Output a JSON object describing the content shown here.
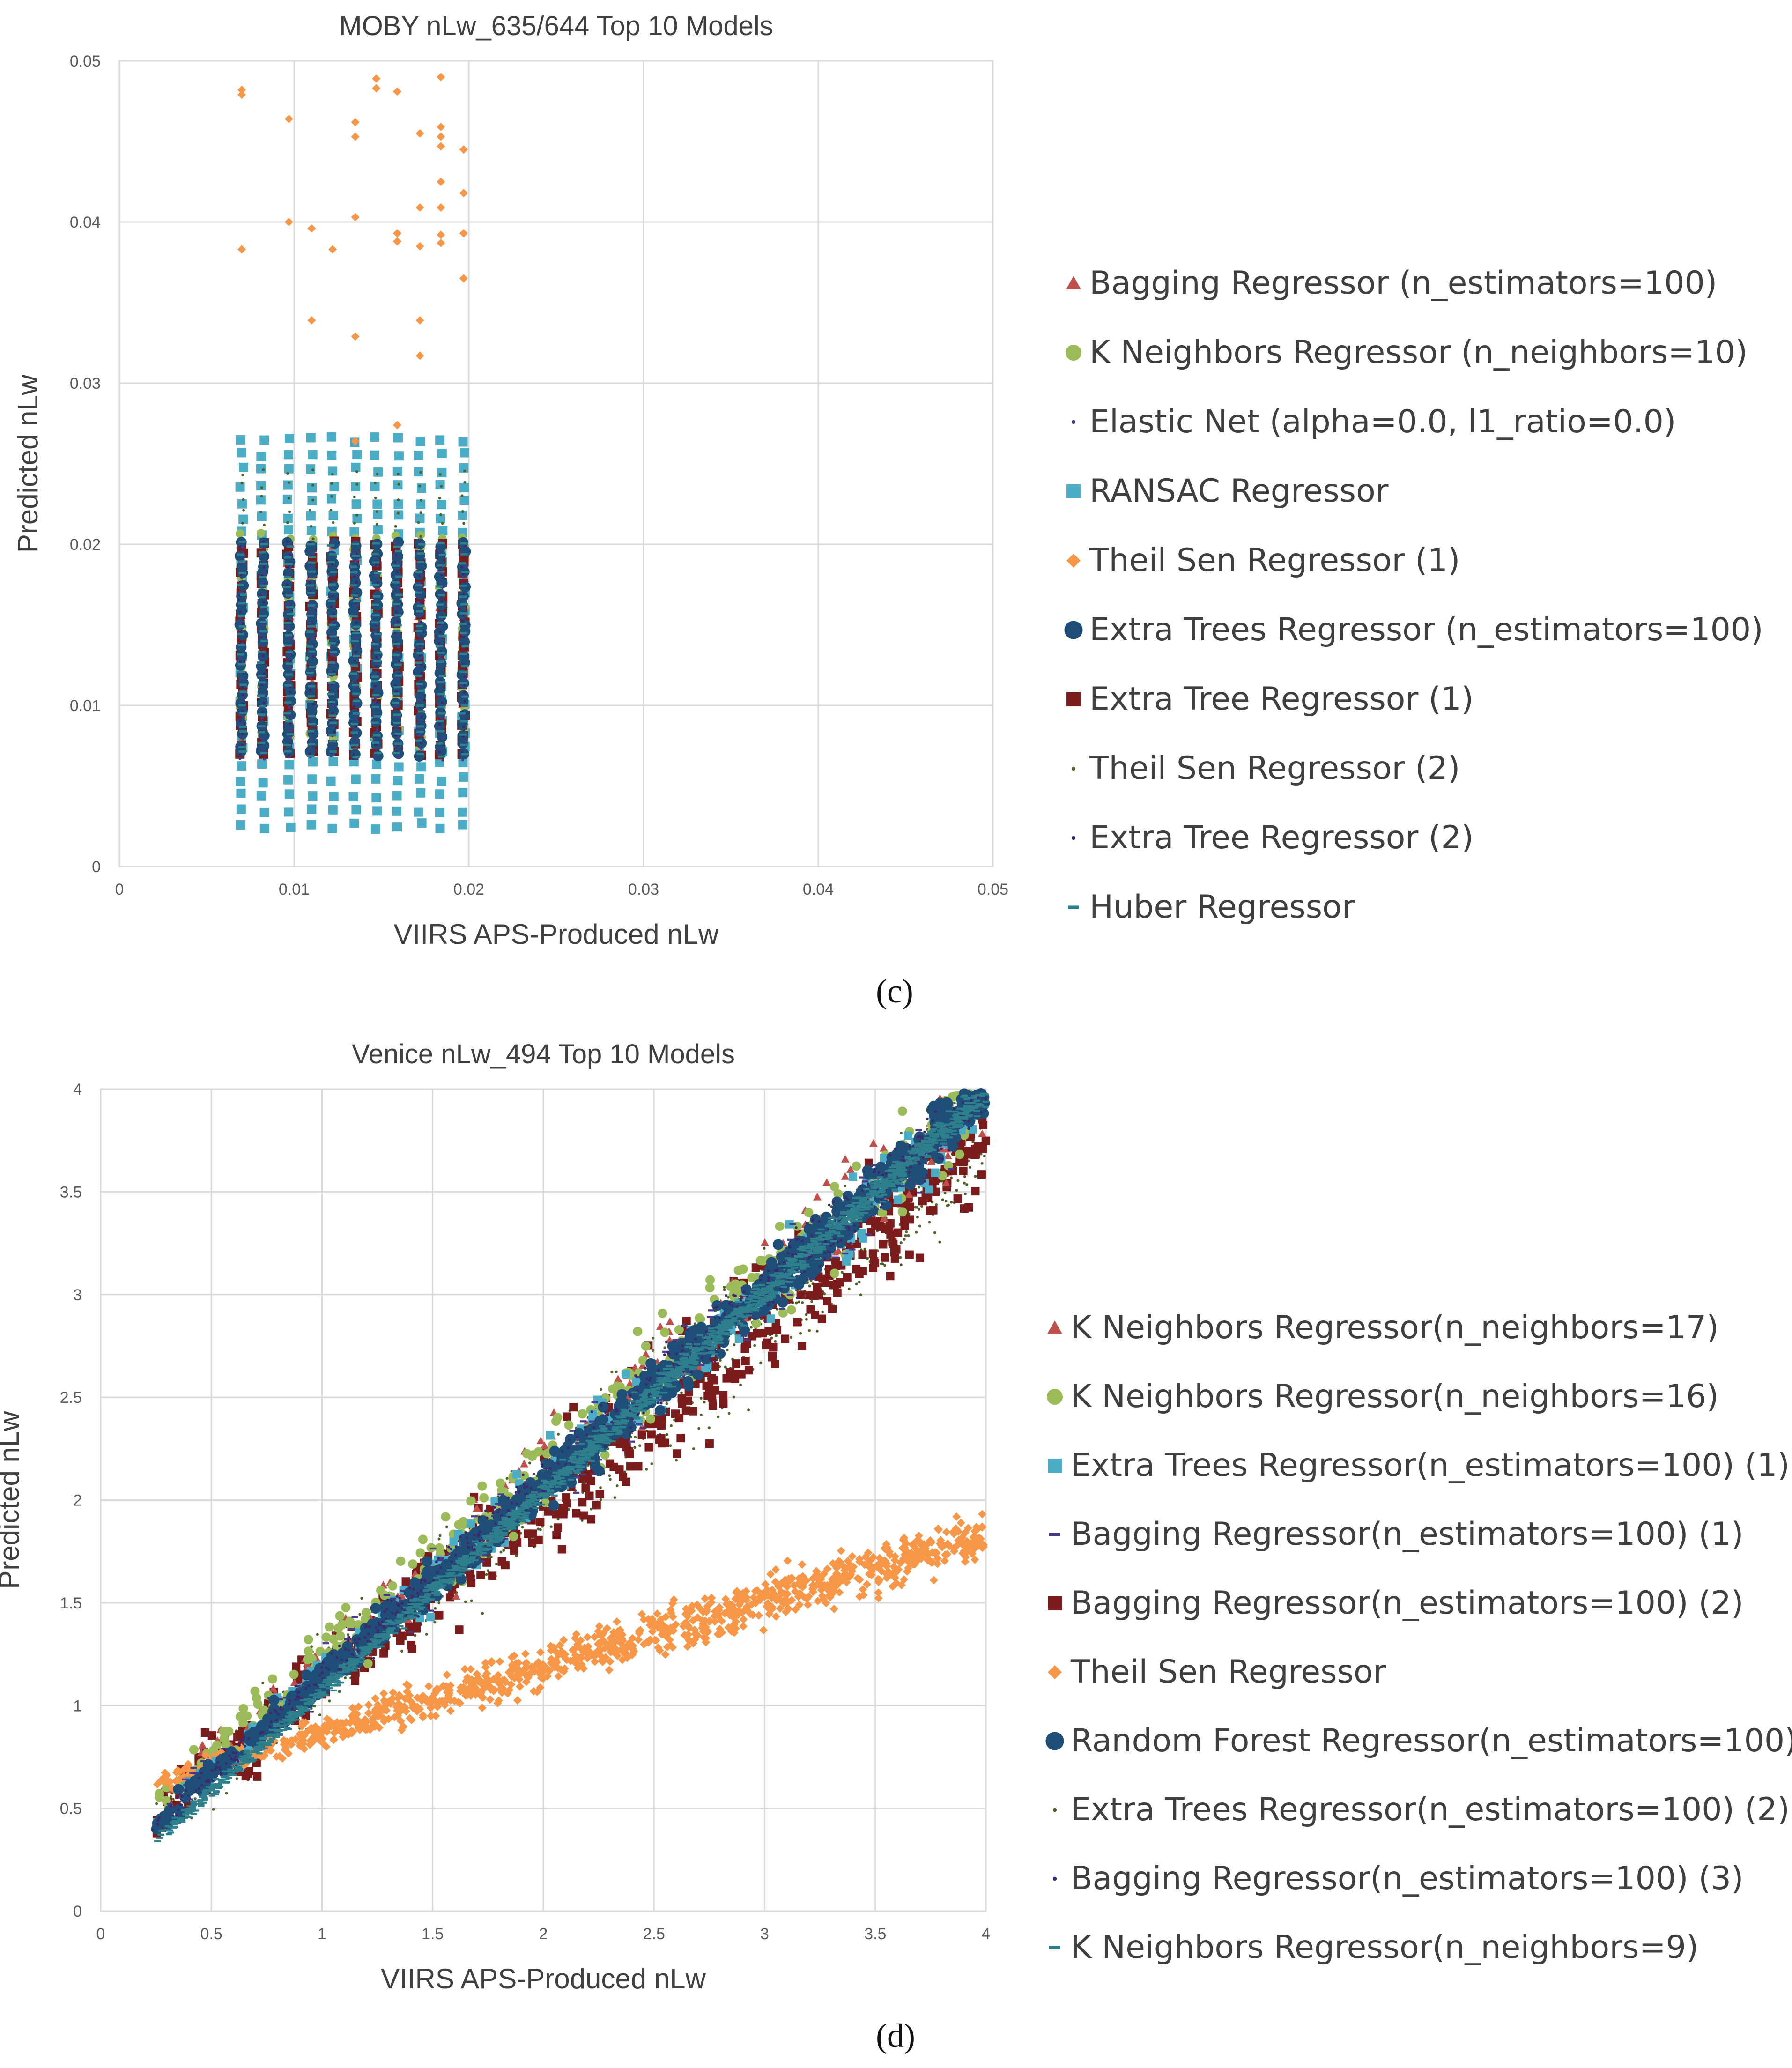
{
  "chart_data": [
    {
      "id": "c",
      "type": "scatter",
      "title": "MOBY nLw_635/644 Top 10 Models",
      "xlabel": "VIIRS APS-Produced nLw",
      "ylabel": "Predicted nLw",
      "xlim": [
        0,
        0.05
      ],
      "ylim": [
        0,
        0.05
      ],
      "xticks": [
        "0",
        "0.01",
        "0.02",
        "0.03",
        "0.04",
        "0.05"
      ],
      "yticks": [
        "0",
        "0.01",
        "0.02",
        "0.03",
        "0.04",
        "0.05"
      ],
      "grid": true,
      "legend_position": "right",
      "panel_label": "(c)",
      "x_values": [
        0.007,
        0.0082,
        0.0097,
        0.011,
        0.0122,
        0.0135,
        0.0147,
        0.0159,
        0.0172,
        0.0184,
        0.0197
      ],
      "series": [
        {
          "name": "Bagging Regressor (n_estimators=100)",
          "marker": "triangle",
          "color": "#c0504d",
          "band": [
            0.0072,
            0.0198
          ]
        },
        {
          "name": "K Neighbors Regressor (n_neighbors=10)",
          "marker": "circle",
          "color": "#9bbb59",
          "band": [
            0.0075,
            0.0205
          ]
        },
        {
          "name": "Elastic Net (alpha=0.0, l1_ratio=0.0)",
          "marker": "dot",
          "color": "#4b3a8c",
          "band": [
            0.0068,
            0.02
          ]
        },
        {
          "name": "RANSAC Regressor",
          "marker": "square",
          "color": "#4bacc6",
          "band": [
            0.0025,
            0.0265
          ]
        },
        {
          "name": "Theil Sen Regressor (1)",
          "marker": "diamond",
          "color": "#f79646",
          "outliers": [
            [
              0.007,
              0.0482
            ],
            [
              0.007,
              0.0479
            ],
            [
              0.007,
              0.0383
            ],
            [
              0.0097,
              0.0464
            ],
            [
              0.0097,
              0.04
            ],
            [
              0.011,
              0.0396
            ],
            [
              0.011,
              0.0339
            ],
            [
              0.0122,
              0.0383
            ],
            [
              0.0135,
              0.0462
            ],
            [
              0.0135,
              0.0453
            ],
            [
              0.0135,
              0.0403
            ],
            [
              0.0135,
              0.0329
            ],
            [
              0.0147,
              0.0489
            ],
            [
              0.0147,
              0.0483
            ],
            [
              0.0159,
              0.0481
            ],
            [
              0.0159,
              0.0393
            ],
            [
              0.0159,
              0.0388
            ],
            [
              0.0172,
              0.0455
            ],
            [
              0.0172,
              0.0409
            ],
            [
              0.0172,
              0.0385
            ],
            [
              0.0172,
              0.0339
            ],
            [
              0.0172,
              0.0317
            ],
            [
              0.0184,
              0.049
            ],
            [
              0.0184,
              0.0459
            ],
            [
              0.0184,
              0.0453
            ],
            [
              0.0184,
              0.0447
            ],
            [
              0.0184,
              0.0425
            ],
            [
              0.0184,
              0.0409
            ],
            [
              0.0184,
              0.0392
            ],
            [
              0.0184,
              0.0387
            ],
            [
              0.0197,
              0.0445
            ],
            [
              0.0197,
              0.0418
            ],
            [
              0.0197,
              0.0393
            ],
            [
              0.0197,
              0.0365
            ],
            [
              0.0135,
              0.0264
            ],
            [
              0.0159,
              0.0274
            ]
          ]
        },
        {
          "name": "Extra Trees Regressor (n_estimators=100)",
          "marker": "circle-large",
          "color": "#1f4e79",
          "band": [
            0.007,
            0.02
          ]
        },
        {
          "name": "Extra Tree Regressor (1)",
          "marker": "square",
          "color": "#7b1c1c",
          "band": [
            0.007,
            0.02
          ]
        },
        {
          "name": "Theil Sen Regressor (2)",
          "marker": "dot",
          "color": "#4f6228",
          "band": [
            0.007,
            0.0245
          ]
        },
        {
          "name": "Extra Tree Regressor (2)",
          "marker": "dot",
          "color": "#3d2a6e",
          "band": [
            0.007,
            0.02
          ]
        },
        {
          "name": "Huber Regressor",
          "marker": "dash",
          "color": "#2e7f8c",
          "band": [
            0.007,
            0.02
          ]
        }
      ]
    },
    {
      "id": "d",
      "type": "scatter",
      "title": "Venice nLw_494 Top 10 Models",
      "xlabel": "VIIRS APS-Produced nLw",
      "ylabel": "Predicted nLw",
      "xlim": [
        0,
        4
      ],
      "ylim": [
        0,
        4
      ],
      "xticks": [
        "0",
        "0.5",
        "1",
        "1.5",
        "2",
        "2.5",
        "3",
        "3.5",
        "4"
      ],
      "yticks": [
        "0",
        "0.5",
        "1",
        "1.5",
        "2",
        "2.5",
        "3",
        "3.5",
        "4"
      ],
      "grid": true,
      "legend_position": "right",
      "panel_label": "(d)",
      "x_range": [
        0.25,
        4.0
      ],
      "series": [
        {
          "name": "K Neighbors Regressor(n_neighbors=17)",
          "marker": "triangle",
          "color": "#c0504d",
          "trend": [
            0.3,
            0.92
          ],
          "spread": 0.45
        },
        {
          "name": "K Neighbors Regressor(n_neighbors=16)",
          "marker": "circle",
          "color": "#9bbb59",
          "trend": [
            0.3,
            0.92
          ],
          "spread": 0.45
        },
        {
          "name": "Extra Trees Regressor(n_estimators=100) (1)",
          "marker": "square",
          "color": "#4bacc6",
          "trend": [
            0.22,
            0.93
          ],
          "spread": 0.35
        },
        {
          "name": "Bagging Regressor(n_estimators=100) (1)",
          "marker": "dash",
          "color": "#4b3a8c",
          "trend": [
            0.22,
            0.93
          ],
          "spread": 0.35
        },
        {
          "name": "Bagging Regressor(n_estimators=100) (2)",
          "marker": "square",
          "color": "#7b1c1c",
          "trend": [
            0.25,
            0.88
          ],
          "spread": 0.6
        },
        {
          "name": "Theil Sen Regressor",
          "marker": "diamond",
          "color": "#f79646",
          "trend": [
            0.55,
            0.32
          ],
          "spread": 0.22
        },
        {
          "name": "Random Forest Regressor(n_estimators=100)",
          "marker": "circle-large",
          "color": "#1f4e79",
          "trend": [
            0.18,
            0.95
          ],
          "spread": 0.25
        },
        {
          "name": "Extra Trees Regressor(n_estimators=100) (2)",
          "marker": "dot",
          "color": "#4f6228",
          "trend": [
            0.25,
            0.88
          ],
          "spread": 0.6
        },
        {
          "name": "Bagging Regressor(n_estimators=100) (3)",
          "marker": "dot",
          "color": "#3d2a6e",
          "trend": [
            0.18,
            0.95
          ],
          "spread": 0.25
        },
        {
          "name": "K Neighbors Regressor(n_neighbors=9)",
          "marker": "dash",
          "color": "#2e7f8c",
          "trend": [
            0.1,
            0.97
          ],
          "spread": 0.12
        }
      ]
    }
  ]
}
